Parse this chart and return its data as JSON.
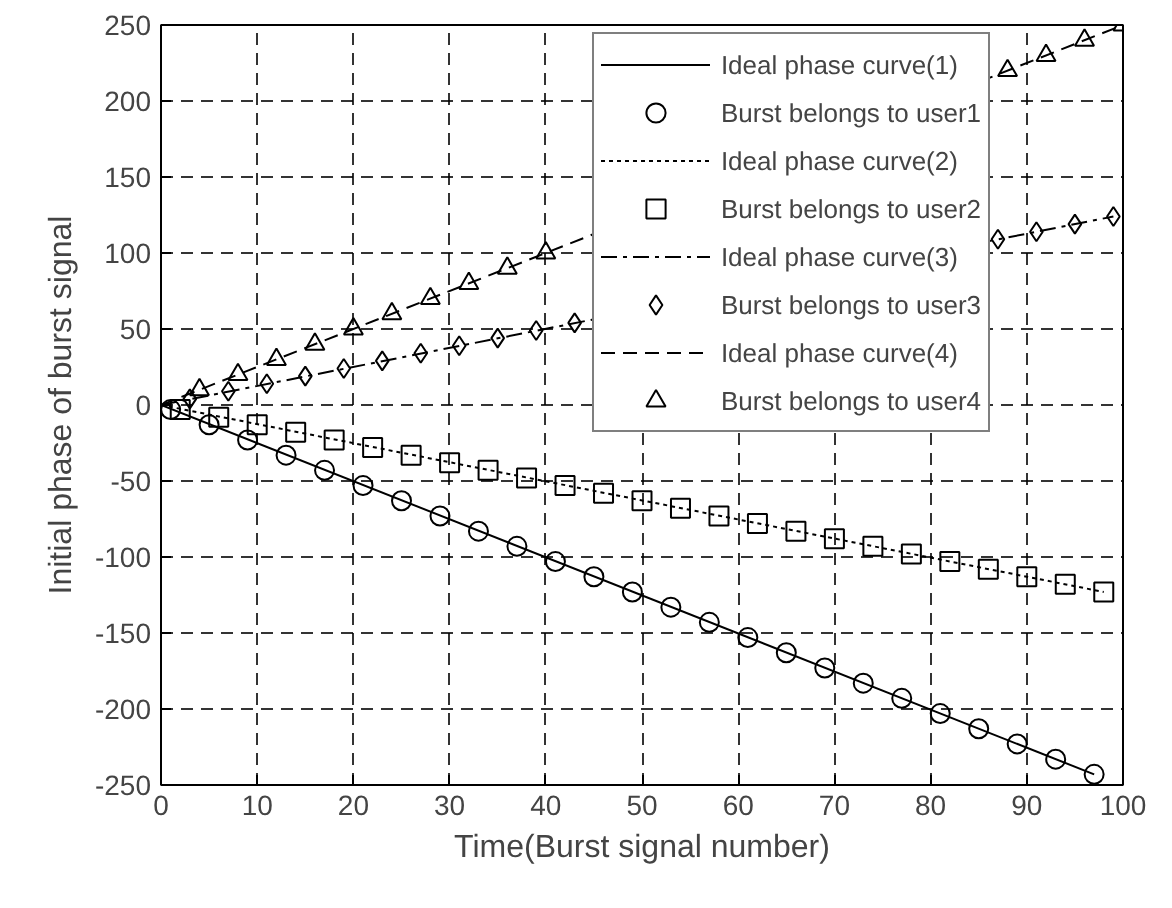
{
  "chart_data": {
    "type": "line",
    "xlabel": "Time(Burst signal number)",
    "ylabel": "Initial phase of burst signal",
    "xlim": [
      0,
      100
    ],
    "ylim": [
      -250,
      250
    ],
    "xticks": [
      0,
      10,
      20,
      30,
      40,
      50,
      60,
      70,
      80,
      90,
      100
    ],
    "yticks": [
      -250,
      -200,
      -150,
      -100,
      -50,
      0,
      50,
      100,
      150,
      200,
      250
    ],
    "grid": true,
    "legend": "top right",
    "series": [
      {
        "name": "Ideal phase curve(1)",
        "line_style": "solid",
        "color": "#000000",
        "x": [
          0,
          97
        ],
        "values": [
          0,
          -243
        ]
      },
      {
        "name": "Burst belongs to user1",
        "type": "scatter",
        "marker": "circle",
        "color": "#000000",
        "x": [
          1,
          5,
          9,
          13,
          17,
          21,
          25,
          29,
          33,
          37,
          41,
          45,
          49,
          53,
          57,
          61,
          65,
          69,
          73,
          77,
          81,
          85,
          89,
          93,
          97
        ],
        "values": [
          -3,
          -13,
          -23,
          -33,
          -43,
          -53,
          -63,
          -73,
          -83,
          -93,
          -103,
          -113,
          -123,
          -133,
          -143,
          -153,
          -163,
          -173,
          -183,
          -193,
          -203,
          -213,
          -223,
          -233,
          -243
        ]
      },
      {
        "name": "Ideal phase curve(2)",
        "line_style": "dotted",
        "color": "#000000",
        "x": [
          0,
          98
        ],
        "values": [
          0,
          -123
        ]
      },
      {
        "name": "Burst belongs to user2",
        "type": "scatter",
        "marker": "square",
        "color": "#000000",
        "x": [
          2,
          6,
          10,
          14,
          18,
          22,
          26,
          30,
          34,
          38,
          42,
          46,
          50,
          54,
          58,
          62,
          66,
          70,
          74,
          78,
          82,
          86,
          90,
          94,
          98
        ],
        "values": [
          -3,
          -8,
          -13,
          -18,
          -23,
          -28,
          -33,
          -38,
          -43,
          -48,
          -53,
          -58,
          -63,
          -68,
          -73,
          -78,
          -83,
          -88,
          -93,
          -98,
          -103,
          -108,
          -113,
          -118,
          -123
        ]
      },
      {
        "name": "Ideal phase curve(3)",
        "line_style": "dashdot",
        "color": "#000000",
        "x": [
          0,
          99
        ],
        "values": [
          0,
          124
        ]
      },
      {
        "name": "Burst belongs to user3",
        "type": "scatter",
        "marker": "diamond",
        "color": "#000000",
        "x": [
          3,
          7,
          11,
          15,
          19,
          23,
          27,
          31,
          35,
          39,
          43,
          47,
          51,
          55,
          59,
          63,
          67,
          71,
          75,
          79,
          83,
          87,
          91,
          95,
          99
        ],
        "values": [
          4,
          9,
          14,
          19,
          24,
          29,
          34,
          39,
          44,
          49,
          54,
          null,
          null,
          null,
          null,
          null,
          null,
          null,
          null,
          null,
          null,
          109,
          114,
          119,
          124
        ]
      },
      {
        "name": "Ideal phase curve(4)",
        "line_style": "dashed",
        "color": "#000000",
        "x": [
          0,
          100
        ],
        "values": [
          0,
          250
        ]
      },
      {
        "name": "Burst belongs to user4",
        "type": "scatter",
        "marker": "triangle",
        "color": "#000000",
        "x": [
          4,
          8,
          12,
          16,
          20,
          24,
          28,
          32,
          36,
          40,
          44,
          48,
          52,
          56,
          60,
          64,
          68,
          72,
          76,
          80,
          84,
          88,
          92,
          96,
          100
        ],
        "values": [
          10,
          20,
          30,
          40,
          50,
          60,
          70,
          80,
          90,
          100,
          null,
          null,
          null,
          null,
          null,
          null,
          null,
          null,
          null,
          null,
          null,
          220,
          230,
          240,
          250
        ]
      }
    ]
  }
}
